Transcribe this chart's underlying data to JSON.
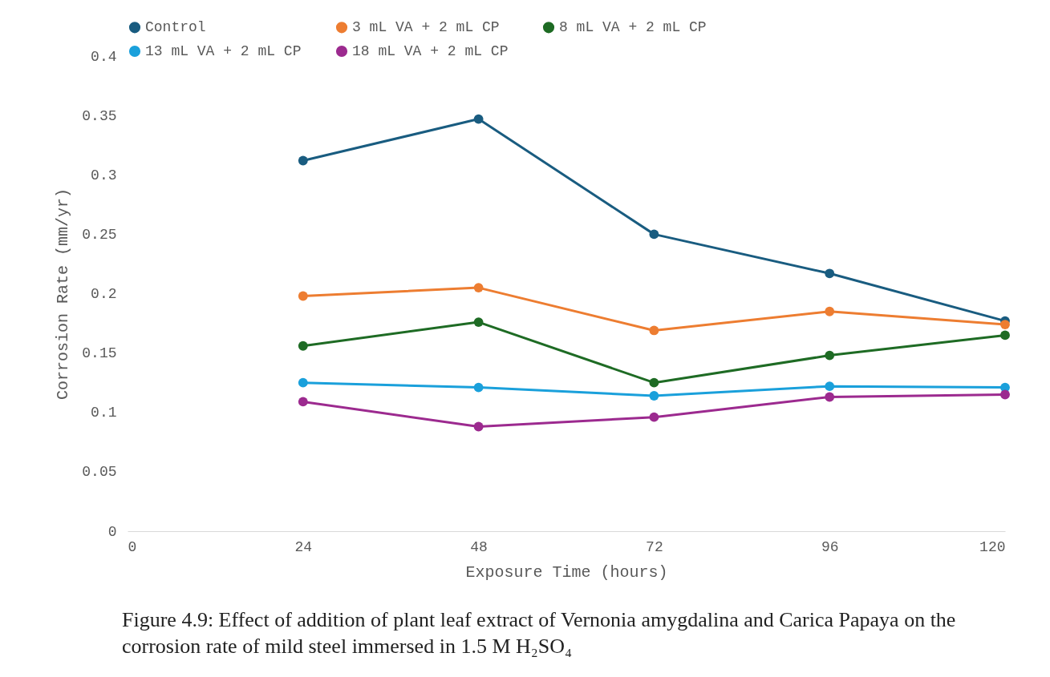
{
  "chart_data": {
    "type": "line",
    "xlabel": "Exposure Time (hours)",
    "ylabel": "Corrosion Rate (mm/yr)",
    "x": [
      24,
      48,
      72,
      96,
      120
    ],
    "xlim": [
      0,
      120
    ],
    "xticks": [
      0,
      24,
      48,
      72,
      96,
      120
    ],
    "ylim": [
      0,
      0.4
    ],
    "yticks": [
      0,
      0.05,
      0.1,
      0.15,
      0.2,
      0.25,
      0.3,
      0.35,
      0.4
    ],
    "grid": false,
    "legend": "top",
    "marker": "circle",
    "line_style": "solid",
    "series": [
      {
        "name": "Control",
        "color": "#195c80",
        "values": [
          0.312,
          0.347,
          0.25,
          0.217,
          0.177
        ]
      },
      {
        "name": "3 mL VA + 2 mL CP",
        "color": "#ed7d31",
        "values": [
          0.198,
          0.205,
          0.169,
          0.185,
          0.174
        ]
      },
      {
        "name": "8 mL VA + 2 mL CP",
        "color": "#1e6b24",
        "values": [
          0.156,
          0.176,
          0.125,
          0.148,
          0.165
        ]
      },
      {
        "name": "13 mL VA + 2 mL CP",
        "color": "#1aa0db",
        "values": [
          0.125,
          0.121,
          0.114,
          0.122,
          0.121
        ]
      },
      {
        "name": "18 mL VA + 2 mL CP",
        "color": "#9c2a8f",
        "values": [
          0.109,
          0.088,
          0.096,
          0.113,
          0.115
        ]
      }
    ],
    "annotations": [
      "Figure 4.9: Effect of addition of plant leaf extract of Vernonia amygdalina and Carica Papaya on the corrosion rate of mild steel immersed in 1.5 M H₂SO₄"
    ]
  }
}
